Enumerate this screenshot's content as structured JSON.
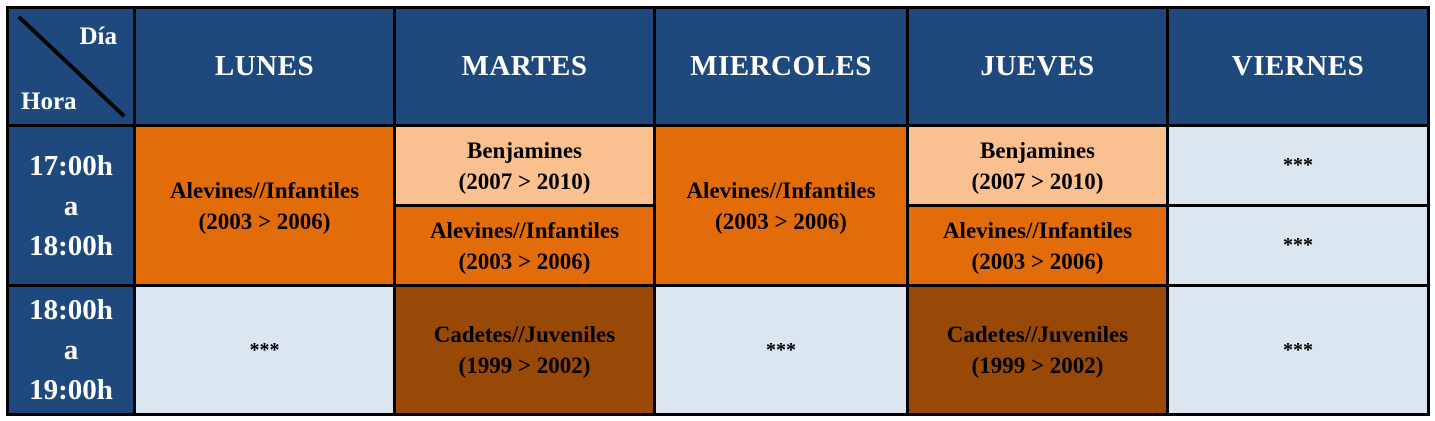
{
  "header": {
    "corner_top": "Día",
    "corner_bottom": "Hora",
    "days": [
      "LUNES",
      "MARTES",
      "MIERCOLES",
      "JUEVES",
      "VIERNES"
    ]
  },
  "slots": [
    {
      "line1": "17:00h",
      "line2": "a",
      "line3": "18:00h"
    },
    {
      "line1": "18:00h",
      "line2": "a",
      "line3": "19:00h"
    }
  ],
  "groups": {
    "alevines": {
      "name": "Alevines//Infantiles",
      "years": "(2003 > 2006)"
    },
    "benjamines": {
      "name": "Benjamines",
      "years": "(2007 > 2010)"
    },
    "cadetes": {
      "name": "Cadetes//Juveniles",
      "years": "(1999 > 2002)"
    }
  },
  "empty_marker": "***",
  "colors": {
    "header_bg": "#1f497d",
    "alevines_bg": "#e36c0a",
    "benjamines_bg": "#fac090",
    "cadetes_bg": "#984807",
    "empty_bg": "#dce6f1"
  }
}
